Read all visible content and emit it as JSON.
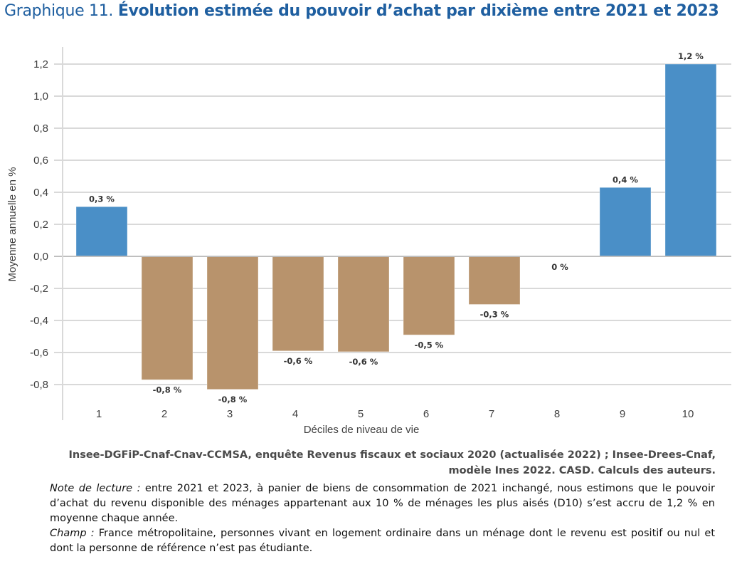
{
  "title": {
    "prefix": "Graphique 11.",
    "main": "Évolution estimée du pouvoir d’achat par dixième entre 2021 et 2023"
  },
  "colors": {
    "title": "#1f5fa0",
    "positive": "#4a8fc7",
    "negative": "#b8936c",
    "grid": "#d9d9d9",
    "zero_line": "#bfbfbf"
  },
  "chart_data": {
    "type": "bar",
    "title": "Évolution estimée du pouvoir d’achat par dixième entre 2021 et 2023",
    "xlabel": "Déciles de niveau de vie",
    "ylabel": "Moyenne annuelle en %",
    "categories": [
      "1",
      "2",
      "3",
      "4",
      "5",
      "6",
      "7",
      "8",
      "9",
      "10"
    ],
    "values": [
      0.31,
      -0.77,
      -0.83,
      -0.59,
      -0.595,
      -0.49,
      -0.3,
      0.0,
      0.43,
      1.2
    ],
    "data_labels": [
      "0,3 %",
      "-0,8 %",
      "-0,8 %",
      "-0,6 %",
      "-0,6 %",
      "-0,5 %",
      "-0,3 %",
      "0 %",
      "0,4 %",
      "1,2 %"
    ],
    "ylim": [
      -0.9,
      1.3
    ],
    "yticks": [
      1.2,
      1.0,
      0.8,
      0.6,
      0.4,
      0.2,
      0.0,
      -0.2,
      -0.4,
      -0.6,
      -0.8
    ],
    "ytick_labels": [
      "1,2",
      "1,0",
      "0,8",
      "0,6",
      "0,4",
      "0,2",
      "0,0",
      "-0,2",
      "-0,4",
      "-0,6",
      "-0,8"
    ],
    "grid": true,
    "legend": "none"
  },
  "source": {
    "line1": "Insee-DGFiP-Cnaf-Cnav-CCMSA, enquête Revenus fiscaux et sociaux 2020 (actualisée 2022) ; Insee-Drees-Cnaf,",
    "line2": "modèle Ines 2022. CASD. Calculs des auteurs."
  },
  "notes": {
    "reading_label": "Note de lecture :",
    "reading_text": " entre 2021 et 2023, à panier de biens de consommation de 2021 inchangé, nous estimons que le pouvoir d’achat du revenu disponible des ménages appartenant aux 10 % de ménages les plus aisés (D10) s’est accru de 1,2 % en moyenne chaque année.",
    "scope_label": "Champ :",
    "scope_text": " France métropolitaine, personnes vivant en logement ordinaire dans un ménage dont le revenu est positif ou nul et dont la personne de référence n’est pas étudiante."
  }
}
